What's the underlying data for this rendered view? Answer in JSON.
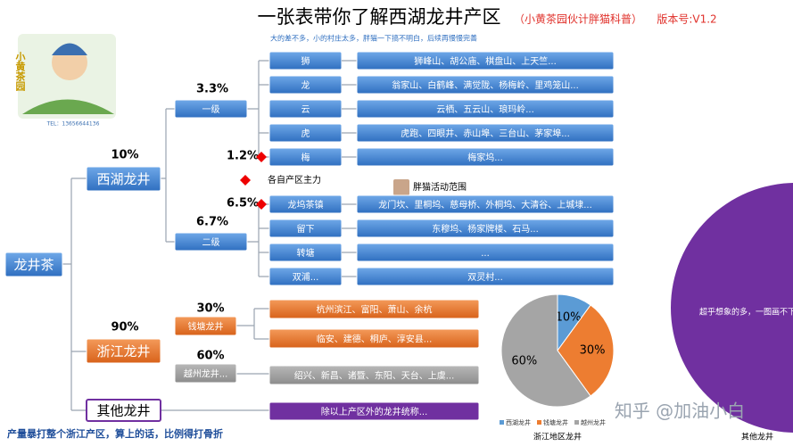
{
  "header": {
    "title": "一张表带你了解西湖龙井产区",
    "subtitle": "（小黄茶园伙计胖猫科普）",
    "version": "版本号:V1.2",
    "note": "大的差不多，小的村庄太多，胖猫一下搞不明白，后续再慢慢完善"
  },
  "logo": {
    "name": "小黄茶园",
    "tel": "TEL：13656644136"
  },
  "root": "龙井茶",
  "branches": [
    {
      "label": "西湖龙井",
      "pct": "10%"
    },
    {
      "label": "浙江龙井",
      "pct": "90%"
    },
    {
      "label": "其他龙井"
    }
  ],
  "xihu_groups": [
    {
      "label": "一级",
      "pct": "3.3%"
    },
    {
      "label": "二级",
      "pct": "6.7%"
    }
  ],
  "xihu_rows": [
    {
      "name": "狮",
      "areas": "狮峰山、胡公庙、棋盘山、上天竺..."
    },
    {
      "name": "龙",
      "areas": "翁家山、白鹤峰、满觉陇、杨梅岭、里鸡笼山..."
    },
    {
      "name": "云",
      "areas": "云栖、五云山、琅玛岭..."
    },
    {
      "name": "虎",
      "areas": "虎跑、四眼井、赤山埠、三台山、茅家埠..."
    },
    {
      "name": "梅",
      "areas": "梅家坞...",
      "pct": "1.2%"
    },
    {
      "name": "龙坞茶镇",
      "areas": "龙门坎、里桐坞、慈母桥、外桐坞、大清谷、上城埭...",
      "pct": "6.5%"
    },
    {
      "name": "留下",
      "areas": "东穆坞、杨家牌楼、石马..."
    },
    {
      "name": "转塘",
      "areas": "..."
    },
    {
      "name": "双浦...",
      "areas": "双灵村..."
    }
  ],
  "notes": {
    "main_area": "各自产区主力",
    "activity": "胖猫活动范围"
  },
  "zhejiang_groups": [
    {
      "label": "钱塘龙井",
      "pct": "30%"
    },
    {
      "label": "越州龙井...",
      "pct": "60%"
    }
  ],
  "zhejiang_rows": [
    "杭州滨江、富阳、萧山、余杭",
    "临安、建德、桐庐、淳安县...",
    "绍兴、新昌、诸暨、东阳、天台、上虞..."
  ],
  "other_row": "除以上产区外的龙井统称...",
  "big_circle": {
    "text": "超乎想象的多，一图画不下",
    "label": "其他龙井"
  },
  "footer": "产量暴打整个浙江产区，算上的话，比例得打骨折",
  "watermark": "知乎 @加油小白",
  "chart_data": {
    "type": "pie",
    "title": "浙江地区龙井",
    "categories": [
      "西湖龙井",
      "钱塘龙井",
      "越州龙井"
    ],
    "values": [
      10,
      30,
      60
    ],
    "value_labels": [
      "10%",
      "30%",
      "60%"
    ],
    "colors": [
      "#5b9bd5",
      "#ed7d31",
      "#a5a5a5"
    ]
  }
}
